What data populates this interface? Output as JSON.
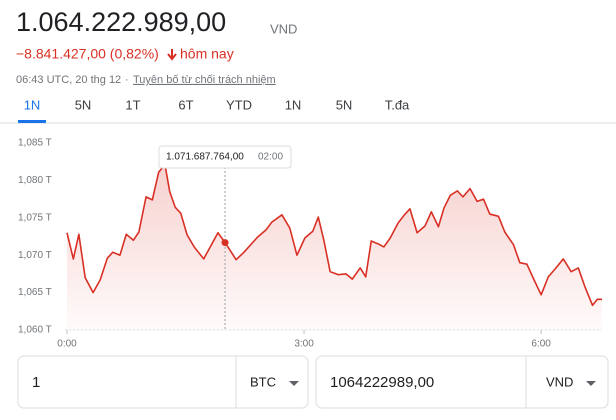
{
  "header": {
    "price": "1.064.222.989,00",
    "currency": "VND",
    "change": "−8.841.427,00 (0,82%)",
    "change_period": "hôm nay",
    "timestamp": "06:43 UTC, 20 thg 12",
    "separator": "·",
    "disclaimer": "Tuyên bố từ chối trách nhiệm"
  },
  "tabs": [
    "1N",
    "5N",
    "1T",
    "6T",
    "YTD",
    "1N",
    "5N",
    "T.đa"
  ],
  "chart_data": {
    "type": "line",
    "color": "#d93025",
    "grid": false,
    "x": [
      0,
      0.08,
      0.15,
      0.23,
      0.33,
      0.42,
      0.51,
      0.58,
      0.67,
      0.75,
      0.84,
      0.91,
      1.0,
      1.08,
      1.16,
      1.24,
      1.3,
      1.37,
      1.44,
      1.52,
      1.61,
      1.73,
      1.91,
      2.0,
      2.14,
      2.24,
      2.41,
      2.52,
      2.59,
      2.72,
      2.82,
      2.91,
      3.01,
      3.11,
      3.18,
      3.25,
      3.33,
      3.43,
      3.53,
      3.61,
      3.71,
      3.78,
      3.85,
      3.94,
      4.01,
      4.09,
      4.19,
      4.27,
      4.34,
      4.43,
      4.53,
      4.61,
      4.7,
      4.77,
      4.85,
      4.94,
      5.01,
      5.1,
      5.19,
      5.27,
      5.35,
      5.46,
      5.54,
      5.65,
      5.73,
      5.82,
      5.91,
      6.0,
      6.09,
      6.18,
      6.28,
      6.38,
      6.47,
      6.56,
      6.65,
      6.71,
      6.77
    ],
    "values": [
      1073.0,
      1069.5,
      1072.8,
      1067.0,
      1065.0,
      1066.7,
      1069.6,
      1070.4,
      1070.0,
      1072.8,
      1072.0,
      1073.1,
      1077.8,
      1077.4,
      1081.1,
      1082.1,
      1078.5,
      1076.4,
      1075.6,
      1072.7,
      1071.1,
      1069.5,
      1073.0,
      1071.7,
      1069.4,
      1070.4,
      1072.4,
      1073.4,
      1074.4,
      1075.4,
      1073.6,
      1070.0,
      1072.3,
      1073.2,
      1075.1,
      1072.0,
      1067.8,
      1067.4,
      1067.5,
      1066.8,
      1068.3,
      1067.1,
      1071.9,
      1071.5,
      1071.1,
      1072.3,
      1074.3,
      1075.4,
      1076.2,
      1073.0,
      1073.9,
      1075.8,
      1073.8,
      1076.3,
      1078.0,
      1078.6,
      1077.8,
      1078.9,
      1077.2,
      1077.5,
      1075.5,
      1075.2,
      1073.1,
      1071.4,
      1069.0,
      1068.8,
      1066.7,
      1064.7,
      1067.1,
      1068.2,
      1069.5,
      1067.8,
      1068.3,
      1065.6,
      1063.3,
      1064.1,
      1064.1
    ],
    "xlim": [
      0,
      6.77
    ],
    "xticks": [
      {
        "value": 0,
        "label": "0:00"
      },
      {
        "value": 3,
        "label": "3:00"
      },
      {
        "value": 6,
        "label": "6:00"
      }
    ],
    "ylim": [
      1060,
      1085
    ],
    "yticks": [
      {
        "value": 1060,
        "label": "1,060 T"
      },
      {
        "value": 1065,
        "label": "1,065 T"
      },
      {
        "value": 1070,
        "label": "1,070 T"
      },
      {
        "value": 1075,
        "label": "1,075 T"
      },
      {
        "value": 1080,
        "label": "1,080 T"
      },
      {
        "value": 1085,
        "label": "1,085 T"
      }
    ],
    "hover": {
      "x": {
        "value": 2,
        "label": "02:00"
      },
      "value": {
        "value": 1071.687764,
        "label": "1.071.687.764,00"
      }
    }
  },
  "converter": {
    "from": {
      "amount": "1",
      "unit": "BTC"
    },
    "to": {
      "amount": "1064222989,00",
      "unit": "VND"
    }
  }
}
